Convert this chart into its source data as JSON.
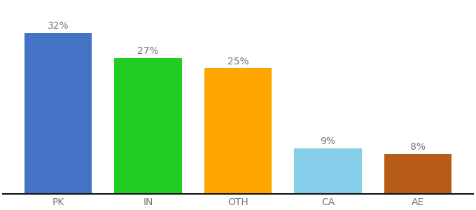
{
  "categories": [
    "PK",
    "IN",
    "OTH",
    "CA",
    "AE"
  ],
  "values": [
    32,
    27,
    25,
    9,
    8
  ],
  "bar_colors": [
    "#4472C4",
    "#22CC22",
    "#FFA500",
    "#87CEEB",
    "#B85C1A"
  ],
  "labels": [
    "32%",
    "27%",
    "25%",
    "9%",
    "8%"
  ],
  "ylim": [
    0,
    38
  ],
  "background_color": "#ffffff",
  "label_fontsize": 10,
  "tick_fontsize": 10,
  "bar_width": 0.75,
  "label_color": "#777777",
  "tick_color": "#777777",
  "bottom_spine_color": "#111111"
}
